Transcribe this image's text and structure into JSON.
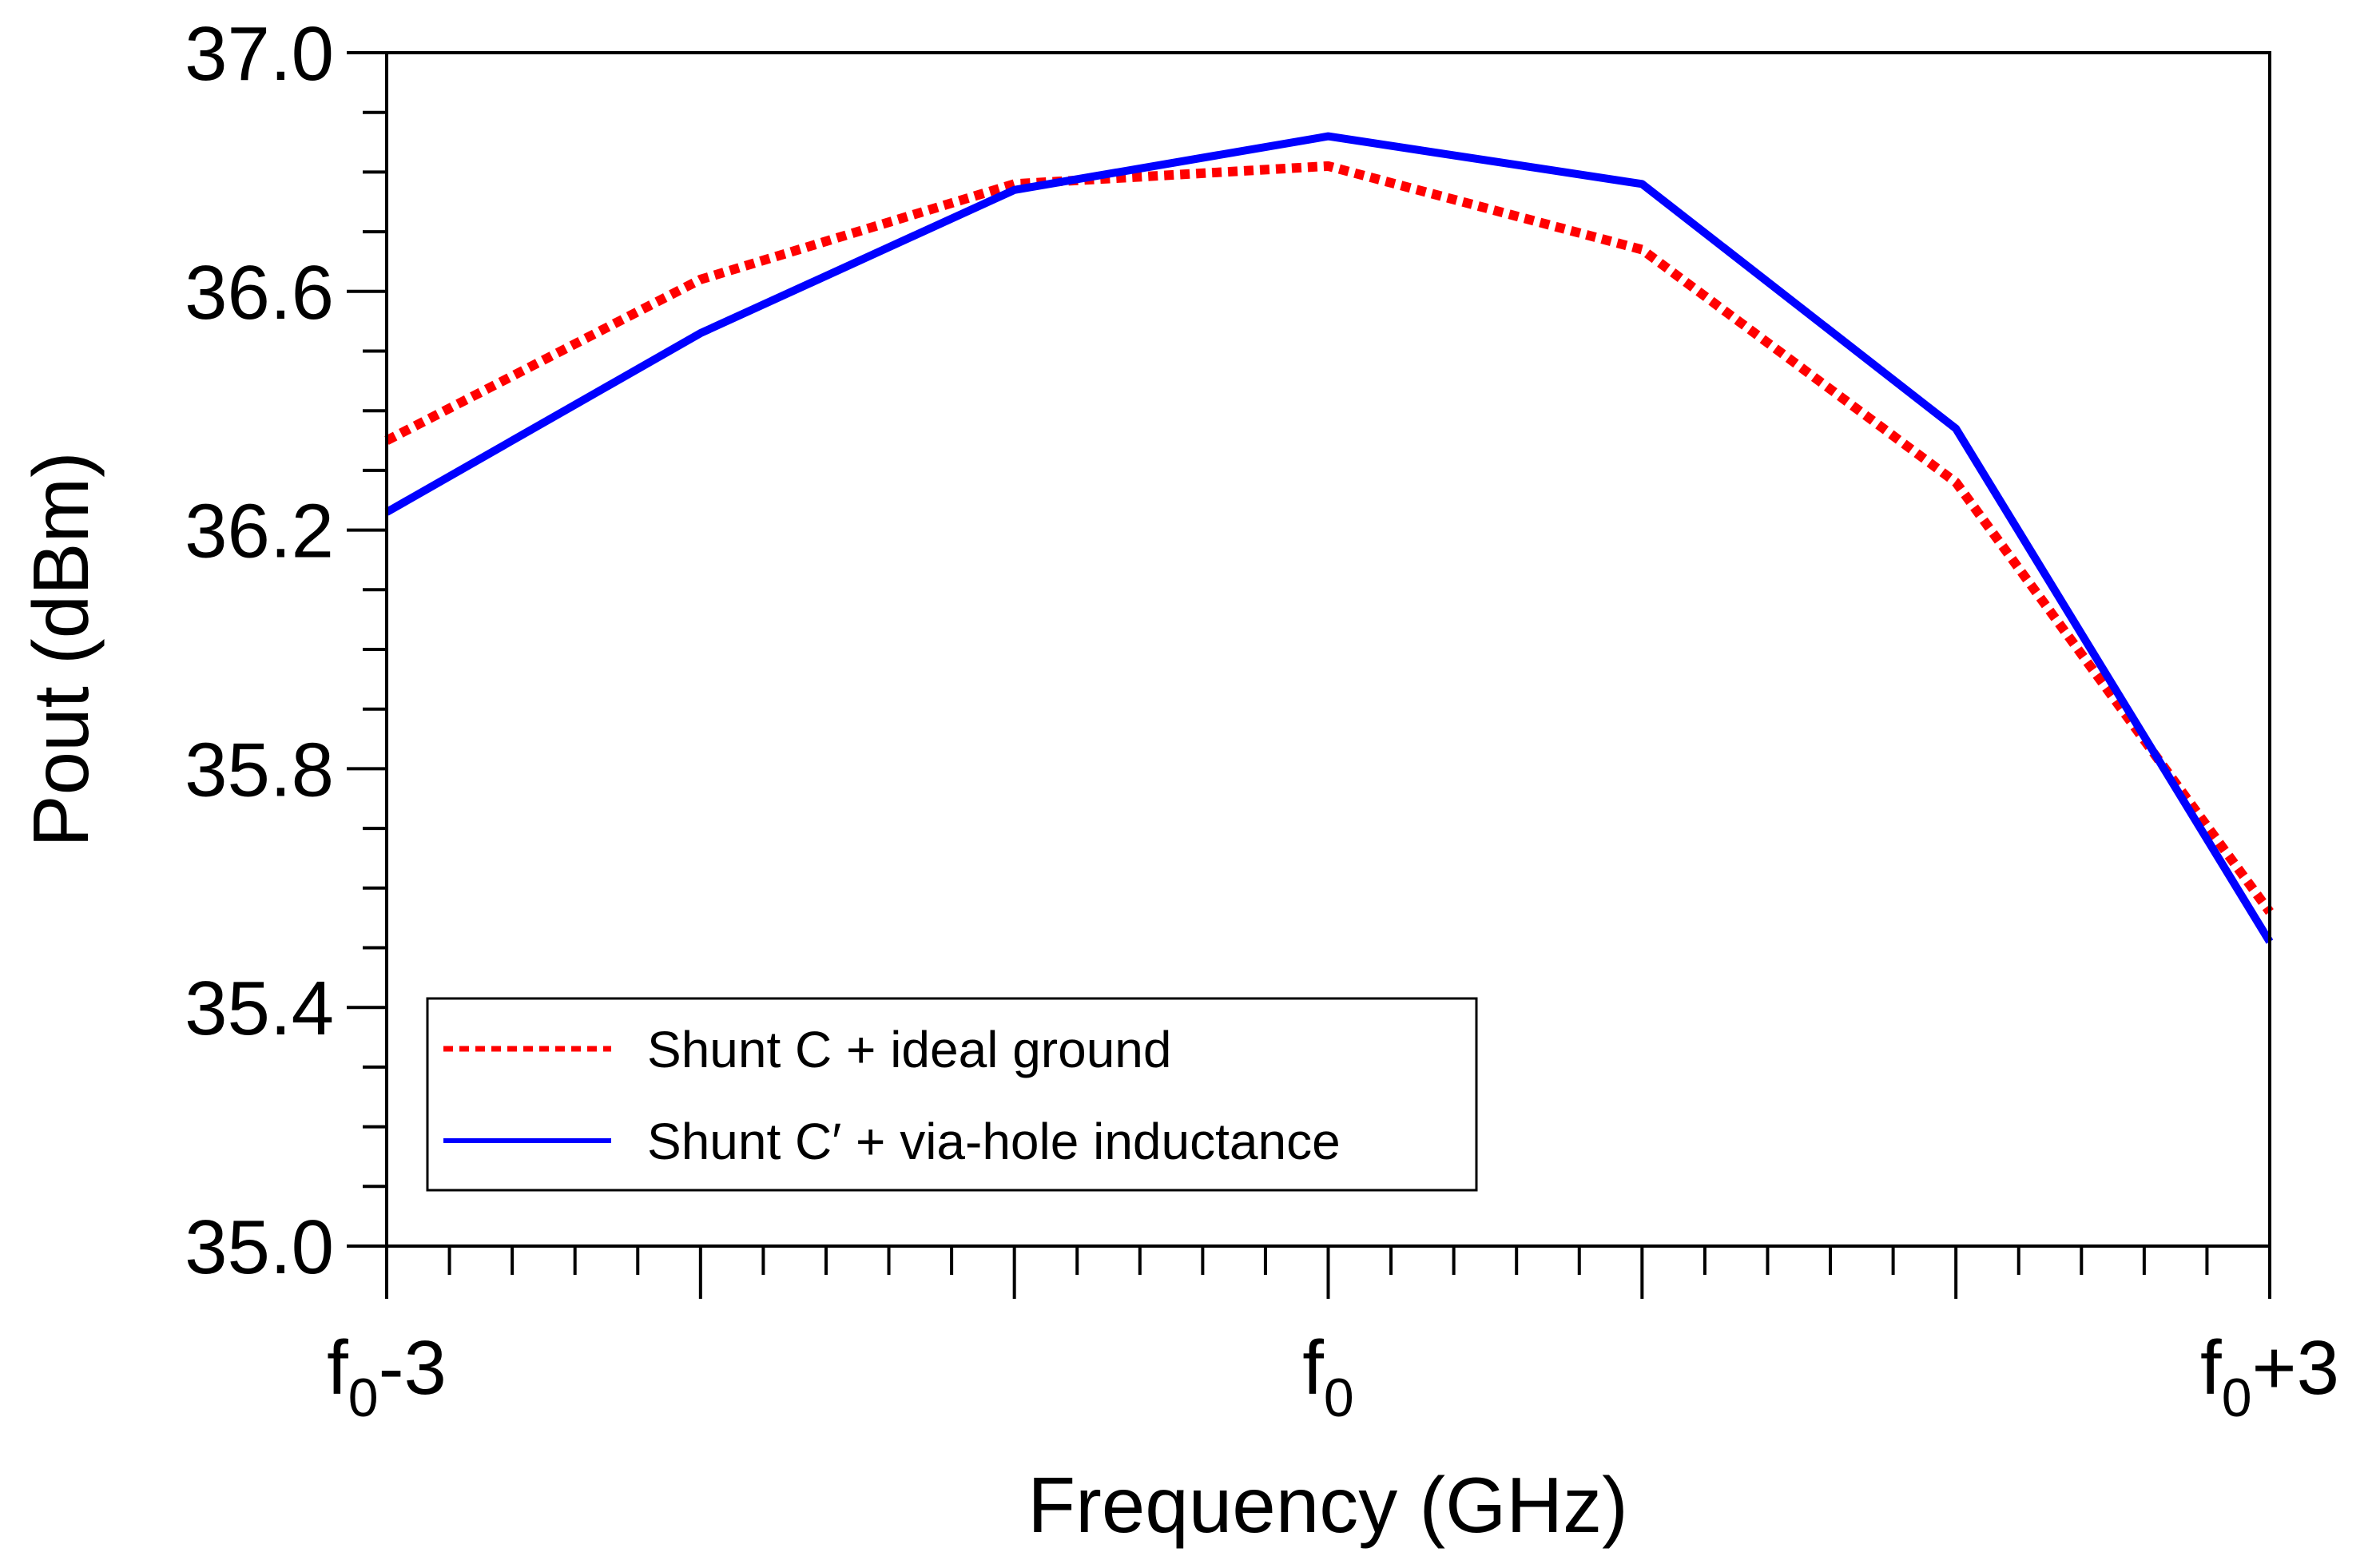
{
  "chart_data": {
    "type": "line",
    "title": "",
    "xlabel": "Frequency (GHz)",
    "ylabel": "Pout (dBm)",
    "x": [
      -3,
      -2,
      -1,
      0,
      1,
      2,
      3
    ],
    "xlim": [
      -3,
      3
    ],
    "ylim": [
      35.0,
      37.0
    ],
    "xticks": [
      {
        "value": -3,
        "base": "f",
        "sub": "0",
        "suffix": "-3"
      },
      {
        "value": 0,
        "base": "f",
        "sub": "0",
        "suffix": ""
      },
      {
        "value": 3,
        "base": "f",
        "sub": "0",
        "suffix": "+3"
      }
    ],
    "yticks": [
      {
        "value": 35.0,
        "label": "35.0"
      },
      {
        "value": 35.4,
        "label": "35.4"
      },
      {
        "value": 35.8,
        "label": "35.8"
      },
      {
        "value": 36.2,
        "label": "36.2"
      },
      {
        "value": 36.6,
        "label": "36.6"
      },
      {
        "value": 37.0,
        "label": "37.0"
      }
    ],
    "grid": false,
    "legend_position": "bottom-left",
    "series": [
      {
        "name": "Shunt C + ideal ground",
        "color": "#ff0000",
        "style": "dotted",
        "values": [
          36.35,
          36.62,
          36.78,
          36.81,
          36.67,
          36.28,
          35.56
        ]
      },
      {
        "name": "Shunt C′ + via-hole inductance",
        "color": "#0000ff",
        "style": "solid",
        "values": [
          36.23,
          36.53,
          36.77,
          36.86,
          36.78,
          36.37,
          35.51
        ]
      }
    ]
  }
}
